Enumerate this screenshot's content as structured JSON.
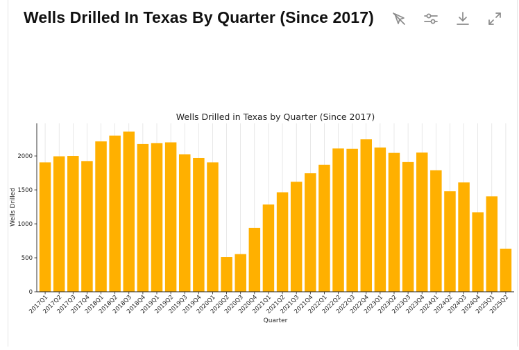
{
  "header": {
    "title": "Wells Drilled In Texas By Quarter (Since 2017)"
  },
  "toolbar": {
    "items": [
      {
        "icon": "hide-cursor-icon",
        "name": "hide-cursor-button"
      },
      {
        "icon": "sliders-icon",
        "name": "settings-button"
      },
      {
        "icon": "download-icon",
        "name": "download-button"
      },
      {
        "icon": "expand-icon",
        "name": "expand-button"
      }
    ]
  },
  "chart_data": {
    "type": "bar",
    "title": "Wells Drilled in Texas by Quarter (Since 2017)",
    "xlabel": "Quarter",
    "ylabel": "Wells Drilled",
    "ylim": [
      0,
      2480
    ],
    "yticks": [
      0,
      500,
      1000,
      1500,
      2000
    ],
    "grid": "vertical",
    "bar_color": "#FFB000",
    "categories": [
      "2017Q1",
      "2017Q2",
      "2017Q3",
      "2017Q4",
      "2018Q1",
      "2018Q2",
      "2018Q3",
      "2018Q4",
      "2019Q1",
      "2019Q2",
      "2019Q3",
      "2019Q4",
      "2020Q1",
      "2020Q2",
      "2020Q3",
      "2020Q4",
      "2021Q1",
      "2021Q2",
      "2021Q3",
      "2021Q4",
      "2022Q1",
      "2022Q2",
      "2022Q3",
      "2022Q4",
      "2023Q1",
      "2023Q2",
      "2023Q3",
      "2023Q4",
      "2024Q1",
      "2024Q2",
      "2024Q3",
      "2024Q4",
      "2025Q1",
      "2025Q2"
    ],
    "values": [
      1905,
      1995,
      2000,
      1925,
      2215,
      2300,
      2360,
      2175,
      2190,
      2200,
      2025,
      1970,
      1905,
      510,
      555,
      940,
      1285,
      1465,
      1620,
      1745,
      1870,
      2110,
      2105,
      2245,
      2125,
      2045,
      1910,
      2050,
      1790,
      1480,
      1610,
      1170,
      1405,
      635
    ]
  }
}
